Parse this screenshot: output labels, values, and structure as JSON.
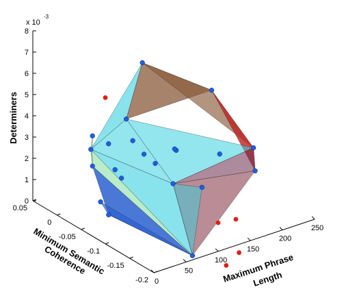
{
  "chart_data": {
    "type": "scatter3d",
    "exponent_label": "x 10",
    "exponent_power": "-3",
    "z_axis": {
      "label": "Determiners",
      "ticks": [
        "0",
        "1",
        "2",
        "3",
        "4",
        "5",
        "6",
        "7",
        "8"
      ],
      "lim": [
        0,
        8
      ]
    },
    "x_axis": {
      "label_line1": "Maximum Phrase",
      "label_line2": "Length",
      "ticks": [
        "0",
        "50",
        "100",
        "150",
        "200",
        "250"
      ],
      "lim": [
        0,
        250
      ]
    },
    "y_axis": {
      "label_line1": "Minimum Semantic",
      "label_line2": "Coherence",
      "ticks": [
        "0.05",
        "0",
        "-0.05",
        "-0.1",
        "-0.15",
        "-0.2"
      ],
      "lim": [
        0.05,
        -0.2
      ]
    },
    "points": [
      {
        "x": 95,
        "y": -0.05,
        "z": 6.9,
        "group": "inside"
      },
      {
        "x": 150,
        "y": -0.12,
        "z": 6.0,
        "group": "inside"
      },
      {
        "x": 30,
        "y": -0.03,
        "z": 3.2,
        "group": "inside"
      },
      {
        "x": 40,
        "y": -0.02,
        "z": 3.6,
        "group": "inside"
      },
      {
        "x": 170,
        "y": -0.18,
        "z": 3.9,
        "group": "inside"
      },
      {
        "x": 165,
        "y": -0.19,
        "z": 3.0,
        "group": "inside"
      },
      {
        "x": 25,
        "y": -0.04,
        "z": 2.6,
        "group": "inside"
      },
      {
        "x": 20,
        "y": -0.08,
        "z": 0.9,
        "group": "inside"
      },
      {
        "x": 60,
        "y": -0.2,
        "z": 0.2,
        "group": "inside"
      },
      {
        "x": 55,
        "y": -0.06,
        "z": 2.0,
        "group": "inside"
      },
      {
        "x": 70,
        "y": -0.05,
        "z": 4.5,
        "group": "inside"
      },
      {
        "x": 65,
        "y": -0.07,
        "z": 3.8,
        "group": "inside"
      },
      {
        "x": 85,
        "y": -0.09,
        "z": 2.8,
        "group": "inside"
      },
      {
        "x": 110,
        "y": -0.1,
        "z": 3.3,
        "group": "inside"
      },
      {
        "x": 140,
        "y": -0.15,
        "z": 3.5,
        "group": "inside"
      },
      {
        "x": 90,
        "y": -0.12,
        "z": 2.2,
        "group": "inside"
      },
      {
        "x": 120,
        "y": -0.14,
        "z": 2.0,
        "group": "inside"
      },
      {
        "x": 45,
        "y": -0.06,
        "z": 2.5,
        "group": "inside"
      },
      {
        "x": 50,
        "y": -0.04,
        "z": 3.4,
        "group": "inside"
      },
      {
        "x": 75,
        "y": -0.08,
        "z": 3.2,
        "group": "inside"
      },
      {
        "x": 30,
        "y": -0.05,
        "z": 1.0,
        "group": "inside"
      },
      {
        "x": 100,
        "y": -0.11,
        "z": 3.6,
        "group": "inside"
      },
      {
        "x": 60,
        "y": -0.02,
        "z": 5.2,
        "group": "outside"
      },
      {
        "x": 130,
        "y": -0.16,
        "z": 0.5,
        "group": "outside"
      },
      {
        "x": 150,
        "y": -0.17,
        "z": 0.6,
        "group": "outside"
      },
      {
        "x": 140,
        "y": -0.19,
        "z": -0.6,
        "group": "outside"
      },
      {
        "x": 120,
        "y": -0.19,
        "z": -1.0,
        "group": "outside"
      }
    ],
    "grid": false,
    "colors": {
      "inside_marker": "#1f5fe0",
      "outside_marker": "#e02010",
      "hull_face_palette": [
        "#3ad0e0",
        "#6a2a4a",
        "#8a5a3a",
        "#7fdc9a",
        "#c02020",
        "#2a60d0",
        "#8a4050"
      ]
    }
  }
}
